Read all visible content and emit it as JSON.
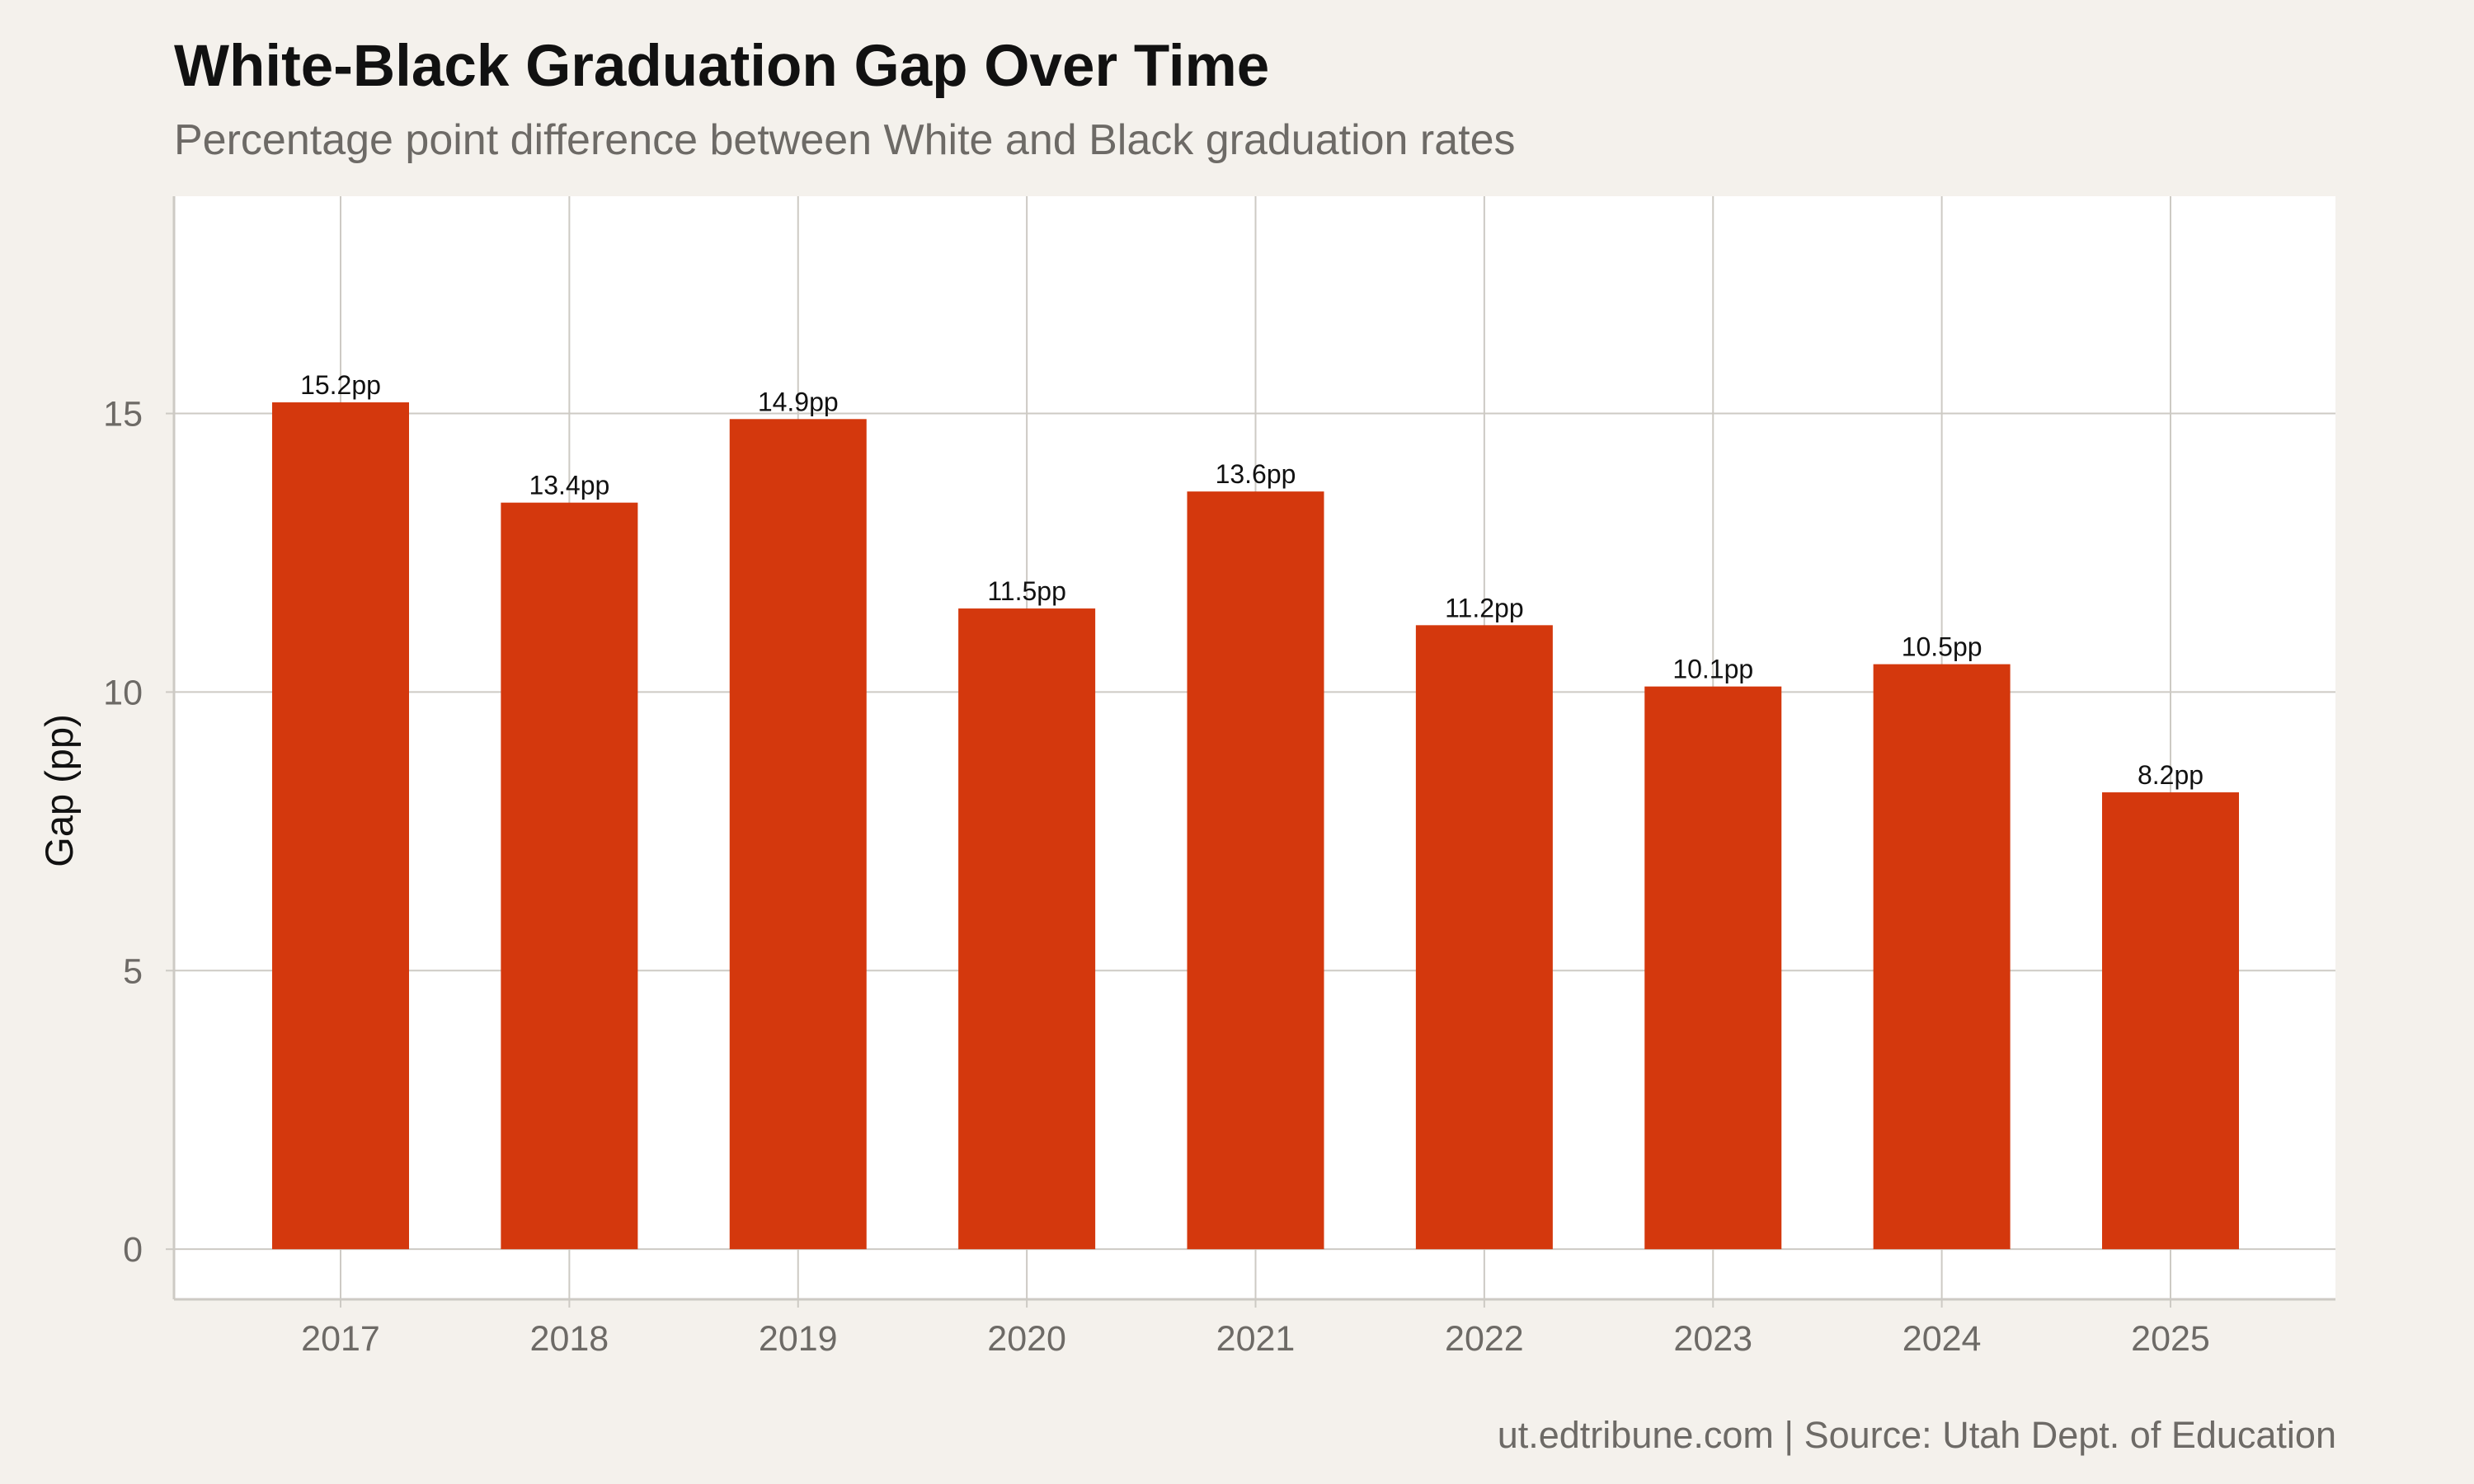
{
  "chart_data": {
    "type": "bar",
    "title": "White-Black Graduation Gap Over Time",
    "subtitle": "Percentage point difference between White and Black graduation rates",
    "caption": "ut.edtribune.com | Source: Utah Dept. of Education",
    "xlabel": "",
    "ylabel": "Gap (pp)",
    "categories": [
      "2017",
      "2018",
      "2019",
      "2020",
      "2021",
      "2022",
      "2023",
      "2024",
      "2025"
    ],
    "values": [
      15.2,
      13.4,
      14.9,
      11.5,
      13.6,
      11.2,
      10.1,
      10.5,
      8.2
    ],
    "data_labels": [
      "15.2pp",
      "13.4pp",
      "14.9pp",
      "11.5pp",
      "13.6pp",
      "11.2pp",
      "10.1pp",
      "10.5pp",
      "8.2pp"
    ],
    "yticks": [
      0,
      5,
      10,
      15
    ],
    "ytick_labels": [
      "0",
      "5",
      "10",
      "15"
    ],
    "ylim": [
      -0.9,
      18.9
    ],
    "grid": true,
    "legend": "none",
    "colors": {
      "bar": "#d4380d",
      "background": "#f4f1ec",
      "panel": "#ffffff",
      "grid": "#cdcac4",
      "axis_text": "#6d6a66",
      "title_text": "#111111"
    }
  }
}
